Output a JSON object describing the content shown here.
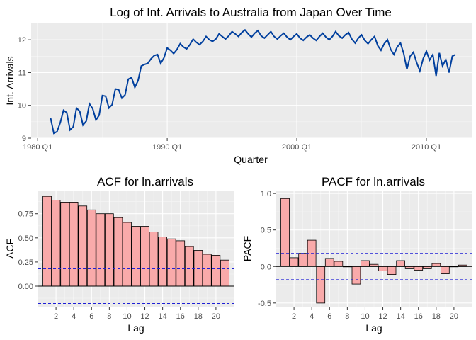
{
  "chart_data": [
    {
      "type": "line",
      "title": "Log of Int. Arrivals to Australia from Japan Over Time",
      "xlabel": "Quarter",
      "ylabel": "Int. Arrivals",
      "xlim": [
        1979.5,
        2013.5
      ],
      "ylim": [
        9,
        12.5
      ],
      "x_ticks": [
        1980,
        1990,
        2000,
        2010
      ],
      "x_tick_labels": [
        "1980 Q1",
        "1990 Q1",
        "2000 Q1",
        "2010 Q1"
      ],
      "y_ticks": [
        9,
        10,
        11,
        12
      ],
      "y_tick_labels": [
        "9",
        "10",
        "11",
        "12"
      ],
      "grid": true,
      "line_color": "#003f9e",
      "series": [
        {
          "x": [
            1981.0,
            1981.25,
            1981.5,
            1981.75,
            1982.0,
            1982.25,
            1982.5,
            1982.75,
            1983.0,
            1983.25,
            1983.5,
            1983.75,
            1984.0,
            1984.25,
            1984.5,
            1984.75,
            1985.0,
            1985.25,
            1985.5,
            1985.75,
            1986.0,
            1986.25,
            1986.5,
            1986.75,
            1987.0,
            1987.25,
            1987.5,
            1987.75,
            1988.0,
            1988.25,
            1988.5,
            1988.75,
            1989.0,
            1989.25,
            1989.5,
            1989.75,
            1990.0,
            1990.25,
            1990.5,
            1990.75,
            1991.0,
            1991.25,
            1991.5,
            1991.75,
            1992.0,
            1992.25,
            1992.5,
            1992.75,
            1993.0,
            1993.25,
            1993.5,
            1993.75,
            1994.0,
            1994.25,
            1994.5,
            1994.75,
            1995.0,
            1995.25,
            1995.5,
            1995.75,
            1996.0,
            1996.25,
            1996.5,
            1996.75,
            1997.0,
            1997.25,
            1997.5,
            1997.75,
            1998.0,
            1998.25,
            1998.5,
            1998.75,
            1999.0,
            1999.25,
            1999.5,
            1999.75,
            2000.0,
            2000.25,
            2000.5,
            2000.75,
            2001.0,
            2001.25,
            2001.5,
            2001.75,
            2002.0,
            2002.25,
            2002.5,
            2002.75,
            2003.0,
            2003.25,
            2003.5,
            2003.75,
            2004.0,
            2004.25,
            2004.5,
            2004.75,
            2005.0,
            2005.25,
            2005.5,
            2005.75,
            2006.0,
            2006.25,
            2006.5,
            2006.75,
            2007.0,
            2007.25,
            2007.5,
            2007.75,
            2008.0,
            2008.25,
            2008.5,
            2008.75,
            2009.0,
            2009.25,
            2009.5,
            2009.75,
            2010.0,
            2010.25,
            2010.5,
            2010.75,
            2011.0,
            2011.25,
            2011.5,
            2011.75,
            2012.0,
            2012.25
          ],
          "y": [
            9.62,
            9.15,
            9.2,
            9.48,
            9.85,
            9.78,
            9.25,
            9.35,
            9.92,
            9.82,
            9.4,
            9.52,
            10.05,
            9.9,
            9.55,
            9.7,
            10.3,
            10.28,
            9.92,
            10.02,
            10.5,
            10.48,
            10.22,
            10.32,
            10.8,
            10.85,
            10.55,
            10.75,
            11.2,
            11.25,
            11.28,
            11.42,
            11.52,
            11.55,
            11.28,
            11.45,
            11.75,
            11.68,
            11.58,
            11.7,
            11.88,
            11.78,
            11.72,
            11.85,
            12.02,
            11.92,
            11.85,
            11.95,
            12.1,
            12.0,
            11.95,
            12.02,
            12.18,
            12.1,
            12.02,
            12.12,
            12.25,
            12.18,
            12.1,
            12.22,
            12.3,
            12.18,
            12.08,
            12.2,
            12.28,
            12.12,
            12.05,
            12.15,
            12.25,
            12.1,
            12.02,
            12.12,
            12.2,
            12.08,
            12.0,
            12.1,
            12.18,
            12.05,
            11.98,
            12.08,
            12.15,
            12.05,
            11.98,
            12.1,
            12.2,
            12.08,
            12.0,
            12.1,
            12.25,
            12.12,
            12.05,
            12.15,
            12.22,
            12.02,
            11.9,
            12.05,
            12.15,
            11.98,
            11.88,
            12.0,
            12.1,
            11.82,
            11.68,
            11.88,
            12.0,
            11.7,
            11.55,
            11.78,
            11.9,
            11.58,
            11.1,
            11.5,
            11.62,
            11.3,
            11.05,
            11.42,
            11.65,
            11.38,
            11.55,
            10.9,
            11.6,
            11.2,
            11.4,
            11.0,
            11.5,
            11.55
          ]
        }
      ]
    },
    {
      "type": "bar",
      "title": "ACF for ln.arrivals",
      "xlabel": "Lag",
      "ylabel": "ACF",
      "xlim": [
        0,
        22
      ],
      "ylim": [
        -0.22,
        0.99
      ],
      "x_ticks": [
        2,
        4,
        6,
        8,
        10,
        12,
        14,
        16,
        18,
        20
      ],
      "x_tick_labels": [
        "2",
        "4",
        "6",
        "8",
        "10",
        "12",
        "14",
        "16",
        "18",
        "20"
      ],
      "y_ticks": [
        0,
        0.25,
        0.5,
        0.75
      ],
      "y_tick_labels": [
        "0.00",
        "0.25",
        "0.50",
        "0.75"
      ],
      "grid": true,
      "bar_color": "#f9aaaa",
      "ci": 0.18,
      "categories": [
        1,
        2,
        3,
        4,
        5,
        6,
        7,
        8,
        9,
        10,
        11,
        12,
        13,
        14,
        15,
        16,
        17,
        18,
        19,
        20,
        21
      ],
      "values": [
        0.93,
        0.89,
        0.87,
        0.87,
        0.83,
        0.79,
        0.75,
        0.75,
        0.71,
        0.66,
        0.62,
        0.62,
        0.56,
        0.51,
        0.49,
        0.47,
        0.41,
        0.37,
        0.33,
        0.32,
        0.27
      ]
    },
    {
      "type": "bar",
      "title": "PACF for ln.arrivals",
      "xlabel": "Lag",
      "ylabel": "PACF",
      "xlim": [
        0,
        22
      ],
      "ylim": [
        -0.56,
        1.04
      ],
      "x_ticks": [
        2,
        4,
        6,
        8,
        10,
        12,
        14,
        16,
        18,
        20
      ],
      "x_tick_labels": [
        "2",
        "4",
        "6",
        "8",
        "10",
        "12",
        "14",
        "16",
        "18",
        "20"
      ],
      "y_ticks": [
        -0.5,
        0,
        0.5,
        1.0
      ],
      "y_tick_labels": [
        "-0.5",
        "0.0",
        "0.5",
        "1.0"
      ],
      "grid": true,
      "bar_color": "#f9aaaa",
      "ci": 0.18,
      "categories": [
        1,
        2,
        3,
        4,
        5,
        6,
        7,
        8,
        9,
        10,
        11,
        12,
        13,
        14,
        15,
        16,
        17,
        18,
        19,
        20,
        21
      ],
      "values": [
        0.93,
        0.12,
        0.18,
        0.36,
        -0.5,
        0.11,
        0.07,
        0.0,
        -0.24,
        0.08,
        0.03,
        -0.06,
        -0.11,
        0.08,
        -0.03,
        -0.05,
        -0.03,
        0.04,
        -0.1,
        0.0,
        0.02
      ]
    }
  ]
}
